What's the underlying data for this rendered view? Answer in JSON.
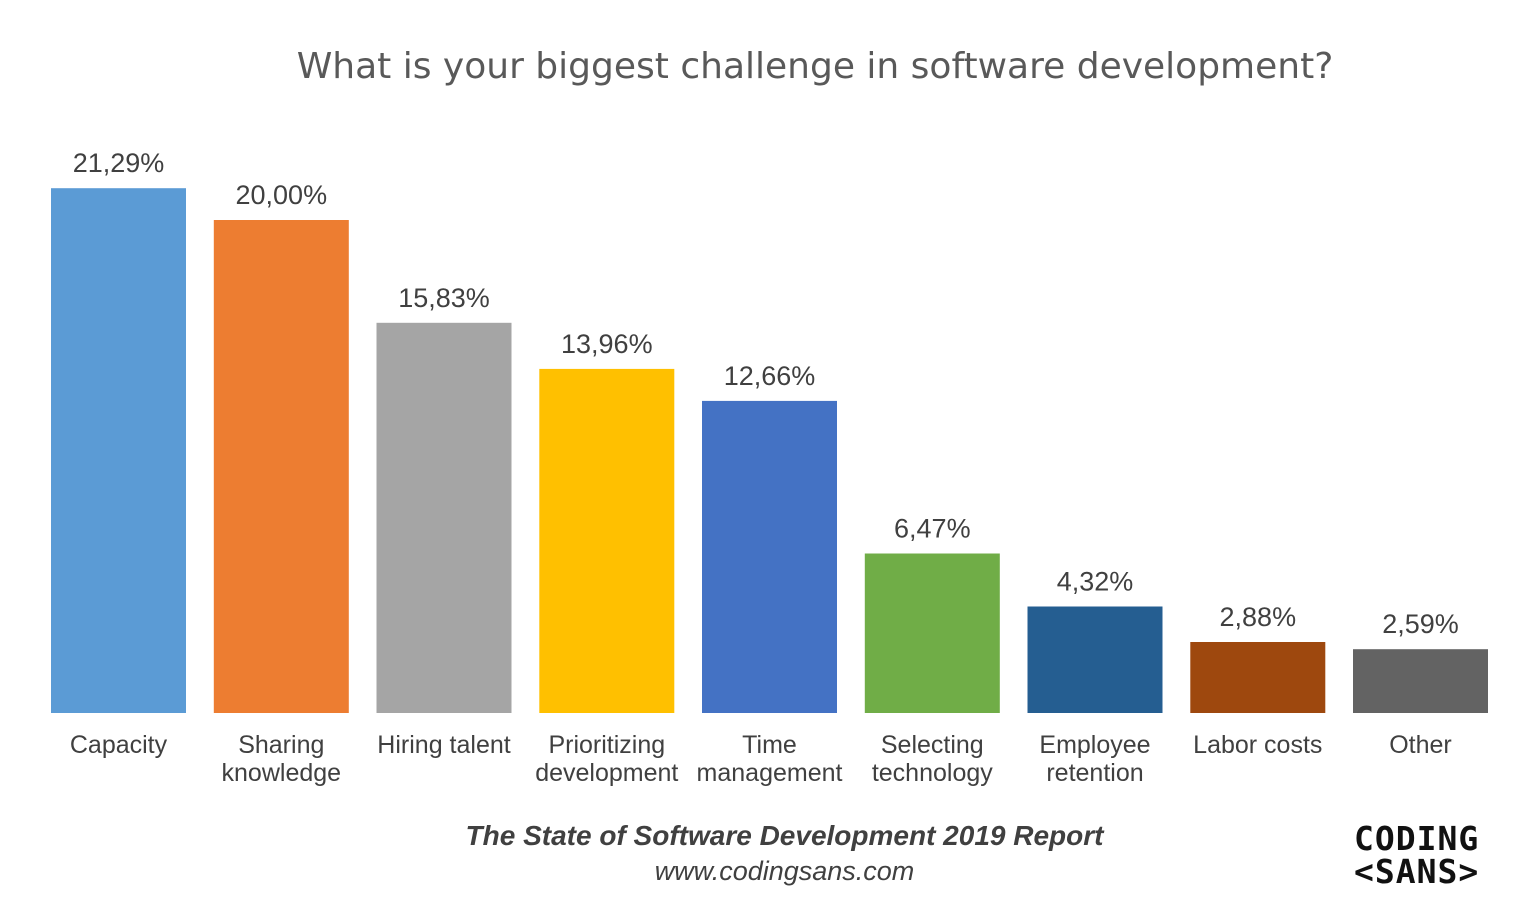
{
  "chart_data": {
    "type": "bar",
    "title": "What is your biggest challenge in software development?",
    "categories": [
      [
        "Capacity"
      ],
      [
        "Sharing",
        "knowledge"
      ],
      [
        "Hiring talent"
      ],
      [
        "Prioritizing",
        "development"
      ],
      [
        "Time",
        "management"
      ],
      [
        "Selecting",
        "technology"
      ],
      [
        "Employee",
        "retention"
      ],
      [
        "Labor costs"
      ],
      [
        "Other"
      ]
    ],
    "values": [
      21.29,
      20.0,
      15.83,
      13.96,
      12.66,
      6.47,
      4.32,
      2.88,
      2.59
    ],
    "value_labels": [
      "21,29%",
      "20,00%",
      "15,83%",
      "13,96%",
      "12,66%",
      "6,47%",
      "4,32%",
      "2,88%",
      "2,59%"
    ],
    "colors": [
      "#5B9BD5",
      "#ED7D31",
      "#A5A5A5",
      "#FFC000",
      "#4472C4",
      "#70AD47",
      "#255E91",
      "#9E480E",
      "#636363"
    ],
    "xlabel": "",
    "ylabel": "",
    "ylim": [
      0,
      25
    ],
    "grid": false,
    "legend": "none"
  },
  "footer": {
    "report": "The State of Software Development 2019 Report",
    "url": "www.codingsans.com"
  },
  "logo": {
    "line1": "CODING",
    "line2": "<SANS>"
  }
}
